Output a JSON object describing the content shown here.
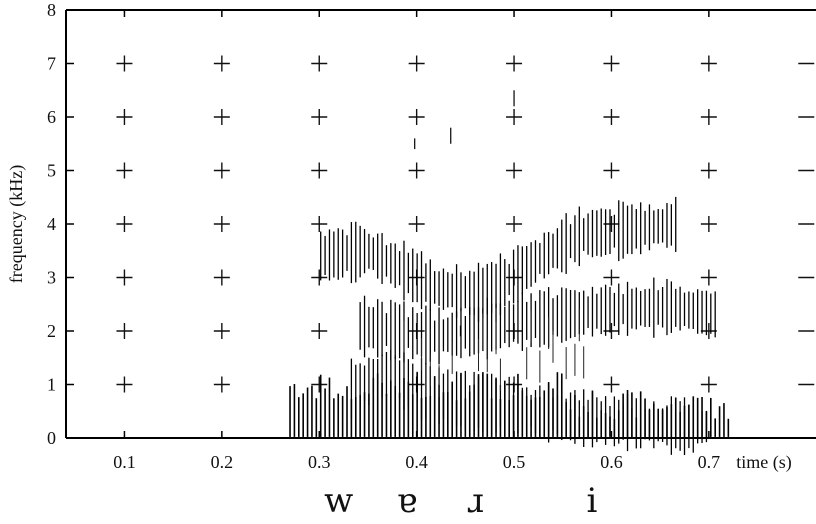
{
  "chart_data": {
    "type": "heatmap",
    "subtype": "spectrogram",
    "title": "",
    "xlabel": "time (s)",
    "ylabel": "frequency (kHz)",
    "xlim": [
      0.04,
      0.81
    ],
    "ylim": [
      0,
      8
    ],
    "x_ticks": [
      "0.1",
      "0.2",
      "0.3",
      "0.4",
      "0.5",
      "0.6",
      "0.7"
    ],
    "y_ticks": [
      "0",
      "1",
      "2",
      "3",
      "4",
      "5",
      "6",
      "7",
      "8"
    ],
    "grid": "plus-marks at each 0.1 s / 1 kHz intersection",
    "voicing_interval_s": [
      0.27,
      0.72
    ],
    "formants": [
      {
        "name": "F1",
        "points": [
          [
            0.33,
            0.9
          ],
          [
            0.37,
            1.2
          ],
          [
            0.42,
            0.8
          ],
          [
            0.47,
            0.65
          ],
          [
            0.52,
            0.5
          ],
          [
            0.58,
            0.35
          ],
          [
            0.64,
            0.25
          ],
          [
            0.7,
            0.2
          ]
        ]
      },
      {
        "name": "F2",
        "points": [
          [
            0.34,
            2.1
          ],
          [
            0.38,
            2.0
          ],
          [
            0.42,
            1.9
          ],
          [
            0.46,
            2.0
          ],
          [
            0.5,
            2.15
          ],
          [
            0.55,
            2.3
          ],
          [
            0.6,
            2.4
          ],
          [
            0.66,
            2.45
          ],
          [
            0.71,
            2.3
          ]
        ]
      },
      {
        "name": "F3",
        "points": [
          [
            0.3,
            3.4
          ],
          [
            0.35,
            3.5
          ],
          [
            0.38,
            3.2
          ],
          [
            0.42,
            2.8
          ],
          [
            0.46,
            2.7
          ],
          [
            0.49,
            2.9
          ],
          [
            0.53,
            3.4
          ],
          [
            0.57,
            3.8
          ],
          [
            0.62,
            3.9
          ],
          [
            0.67,
            4.0
          ]
        ]
      }
    ],
    "phonetic_labels": [
      {
        "symbol": "w",
        "time": 0.32
      },
      {
        "symbol": "ɐ",
        "time": 0.39
      },
      {
        "symbol": "ɹ",
        "time": 0.46
      },
      {
        "symbol": "i",
        "time": 0.58
      }
    ]
  }
}
